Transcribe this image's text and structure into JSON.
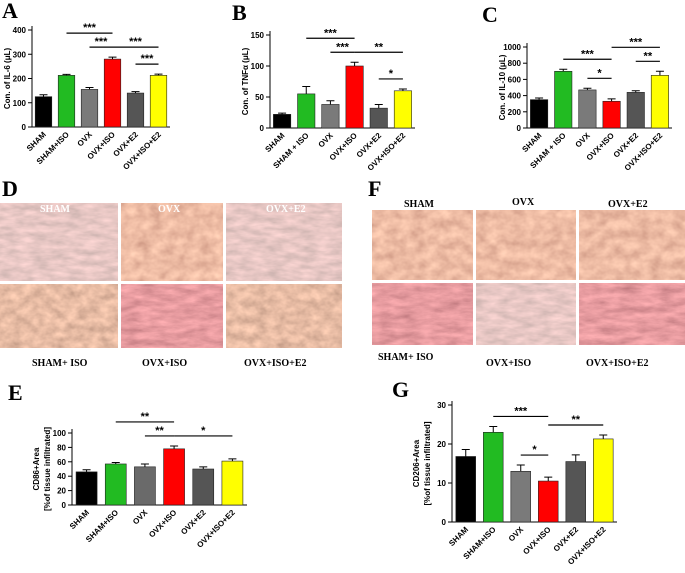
{
  "chart_data": [
    {
      "type": "bar",
      "panel": "A",
      "ylabel": [
        "Con. of IL-6 (μL)"
      ],
      "categories": [
        "SHAM",
        "SHAM+ISO",
        "OVX",
        "OVX+ISO",
        "OVX+E2",
        "OVX+ISO+E2"
      ],
      "values": [
        125,
        213,
        155,
        280,
        140,
        213
      ],
      "errors": [
        8,
        4,
        8,
        8,
        6,
        5
      ],
      "colors": [
        "#000000",
        "#22bb22",
        "#7a7a7a",
        "#ff0000",
        "#555555",
        "#ffff00"
      ],
      "ylim": [
        0,
        400
      ],
      "yticks": [
        0,
        100,
        200,
        300,
        400
      ],
      "annotations": [
        {
          "between": [
            "OVX",
            "OVX+ISO"
          ],
          "label": "***"
        },
        {
          "between": [
            "OVX+E2",
            "OVX+ISO+E2"
          ],
          "label": "***"
        },
        {
          "between": [
            "SHAM+ISO",
            "OVX+ISO"
          ],
          "label": "***"
        },
        {
          "between": [
            "OVX+ISO",
            "OVX+ISO+E2"
          ],
          "label": "***"
        }
      ]
    },
    {
      "type": "bar",
      "panel": "B",
      "ylabel": [
        "Con. of TNFα (μL)"
      ],
      "categories": [
        "SHAM",
        "SHAM + ISO",
        "OVX",
        "OVX+ISO",
        "OVX+E2",
        "OVX+ISO+E2"
      ],
      "values": [
        22,
        55,
        38,
        100,
        32,
        60
      ],
      "errors": [
        2,
        12,
        6,
        6,
        6,
        3
      ],
      "colors": [
        "#000000",
        "#22bb22",
        "#7a7a7a",
        "#ff0000",
        "#555555",
        "#ffff00"
      ],
      "ylim": [
        0,
        150
      ],
      "yticks": [
        0,
        50,
        100,
        150
      ],
      "annotations": [
        {
          "between": [
            "OVX",
            "OVX+ISO"
          ],
          "label": "***"
        },
        {
          "between": [
            "OVX+E2",
            "OVX+ISO+E2"
          ],
          "label": "*"
        },
        {
          "between": [
            "SHAM + ISO",
            "OVX+ISO"
          ],
          "label": "***"
        },
        {
          "between": [
            "OVX+ISO",
            "OVX+ISO+E2"
          ],
          "label": "**"
        }
      ]
    },
    {
      "type": "bar",
      "panel": "C",
      "ylabel": [
        "Con. of IL-10 (μL)"
      ],
      "categories": [
        "SHAM",
        "SHAM + ISO",
        "OVX",
        "OVX+ISO",
        "OVX+E2",
        "OVX+ISO+E2"
      ],
      "values": [
        350,
        700,
        470,
        330,
        440,
        650
      ],
      "errors": [
        20,
        25,
        20,
        30,
        20,
        50
      ],
      "colors": [
        "#000000",
        "#22bb22",
        "#7a7a7a",
        "#ff0000",
        "#555555",
        "#ffff00"
      ],
      "ylim": [
        0,
        1000
      ],
      "yticks": [
        0,
        200,
        400,
        600,
        800,
        1000
      ],
      "annotations": [
        {
          "between": [
            "OVX",
            "OVX+ISO"
          ],
          "label": "*"
        },
        {
          "between": [
            "OVX+E2",
            "OVX+ISO+E2"
          ],
          "label": "**"
        },
        {
          "between": [
            "SHAM + ISO",
            "OVX+ISO"
          ],
          "label": "***"
        },
        {
          "between": [
            "OVX+ISO",
            "OVX+ISO+E2"
          ],
          "label": "***"
        }
      ]
    },
    {
      "type": "bar",
      "panel": "E",
      "ylabel": [
        "CD86+Area",
        "[%of tissue infiltrated]"
      ],
      "categories": [
        "SHAM",
        "SHAM+ISO",
        "OVX",
        "OVX+ISO",
        "OVX+E2",
        "OVX+ISO+E2"
      ],
      "values": [
        46,
        57,
        53,
        78,
        50,
        61
      ],
      "errors": [
        3,
        2,
        4,
        4,
        3,
        3
      ],
      "colors": [
        "#000000",
        "#22bb22",
        "#6a6a6a",
        "#ff0000",
        "#555555",
        "#ffff00"
      ],
      "ylim": [
        0,
        100
      ],
      "yticks": [
        0,
        20,
        40,
        60,
        80,
        100
      ],
      "annotations": [
        {
          "between": [
            "OVX",
            "OVX+ISO"
          ],
          "label": "**"
        },
        {
          "between": [
            "SHAM+ISO",
            "OVX+ISO"
          ],
          "label": "**"
        },
        {
          "between": [
            "OVX+ISO",
            "OVX+ISO+E2"
          ],
          "label": "*"
        }
      ]
    },
    {
      "type": "bar",
      "panel": "G",
      "ylabel": [
        "CD206+Area",
        "[%of tissue infiltrated]"
      ],
      "categories": [
        "SHAM",
        "SHAM+ISO",
        "OVX",
        "OVX+ISO",
        "OVX+E2",
        "OVX+ISO+E2"
      ],
      "values": [
        16.8,
        23,
        13,
        10.5,
        15.5,
        21.3
      ],
      "errors": [
        1.8,
        1.5,
        1.6,
        1,
        1.7,
        1
      ],
      "colors": [
        "#000000",
        "#22bb22",
        "#7a7a7a",
        "#ff0000",
        "#555555",
        "#ffff00"
      ],
      "ylim": [
        0,
        30
      ],
      "yticks": [
        0,
        10,
        20,
        30
      ],
      "annotations": [
        {
          "between": [
            "OVX",
            "OVX+ISO"
          ],
          "label": "*"
        },
        {
          "between": [
            "SHAM+ISO",
            "OVX+ISO"
          ],
          "label": "***"
        },
        {
          "between": [
            "OVX+ISO",
            "OVX+ISO+E2"
          ],
          "label": "**"
        }
      ]
    }
  ],
  "image_panels": [
    {
      "panel": "D",
      "top_labels": [
        "SHAM",
        "OVX",
        "OVX+E2"
      ],
      "bottom_labels": [
        "SHAM+ ISO",
        "OVX+ISO",
        "OVX+ISO+E2"
      ]
    },
    {
      "panel": "F",
      "top_labels": [
        "SHAM",
        "OVX",
        "OVX+E2"
      ],
      "bottom_labels": [
        "SHAM+ ISO",
        "OVX+ISO",
        "OVX+ISO+E2"
      ]
    }
  ]
}
